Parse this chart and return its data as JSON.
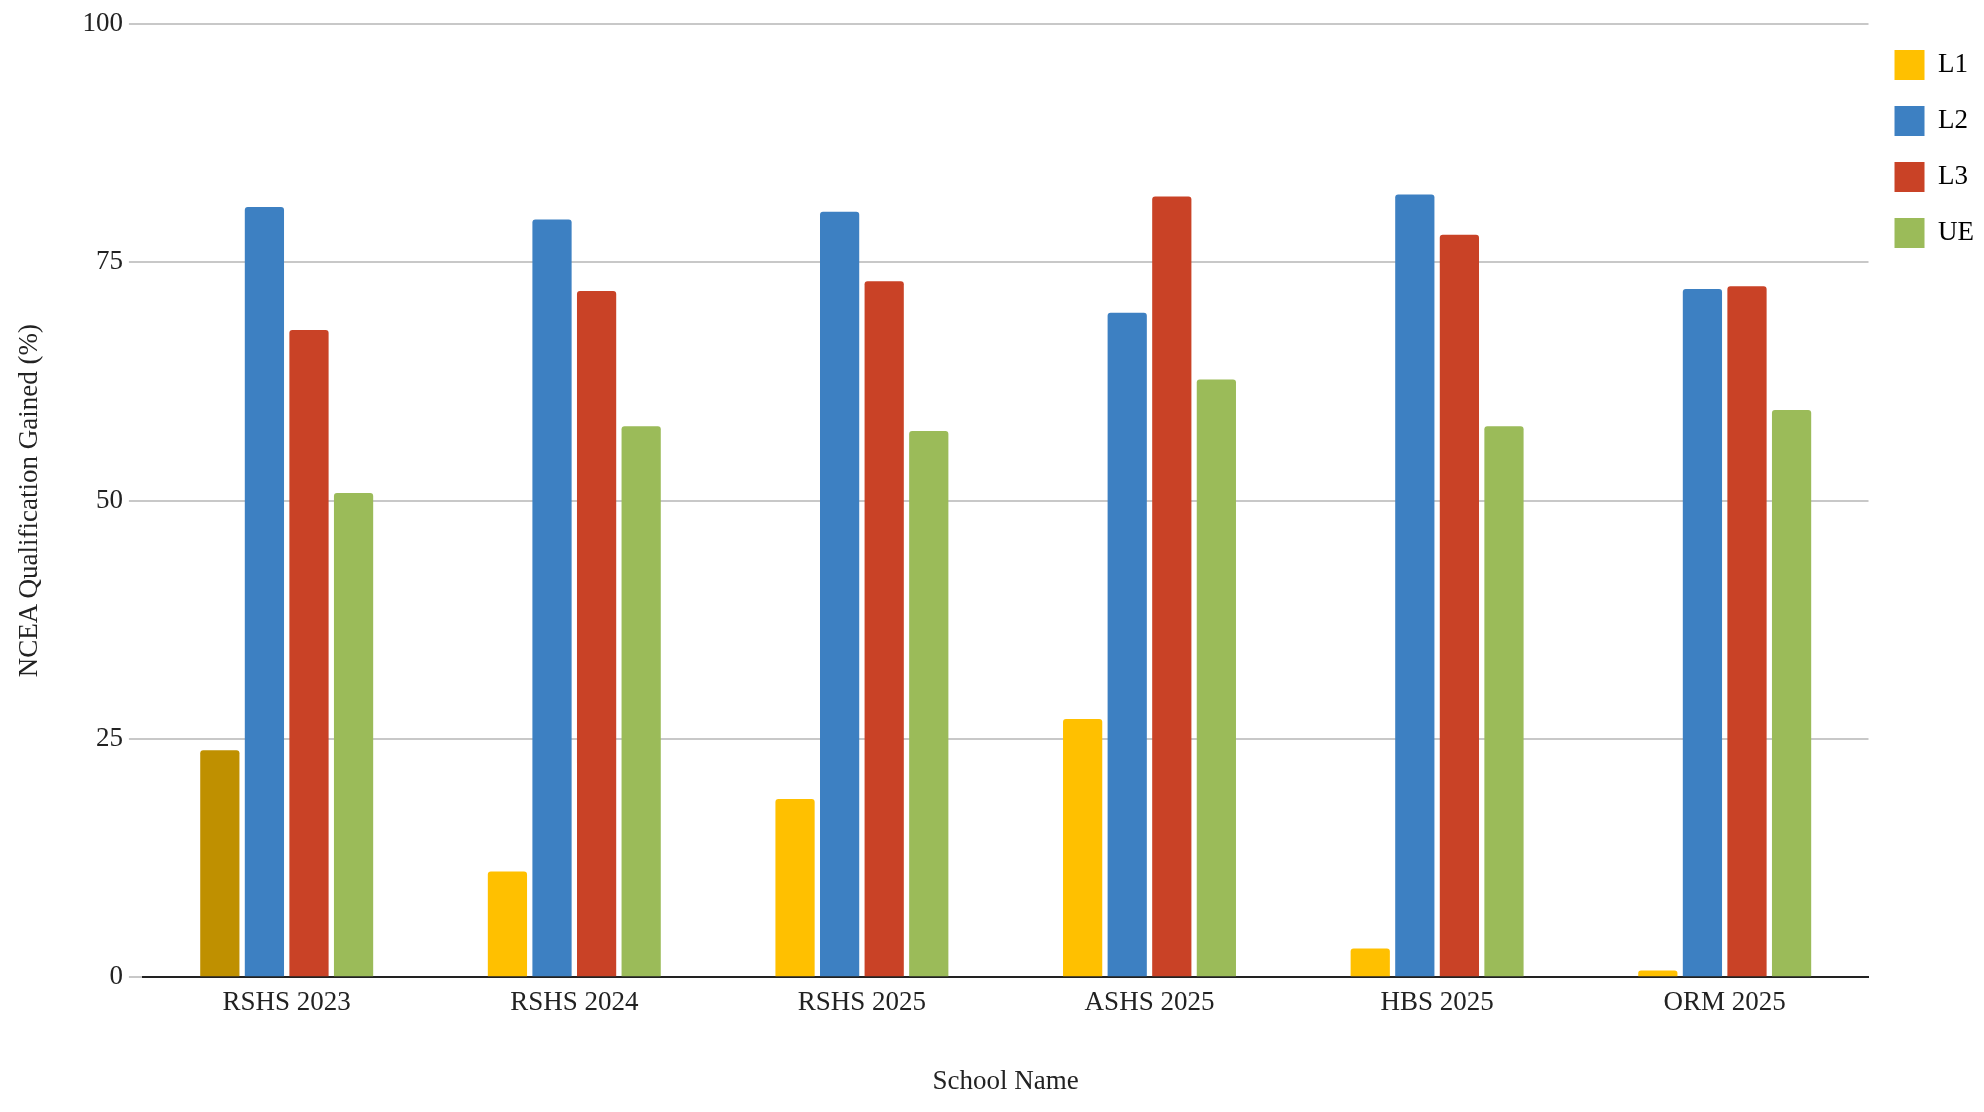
{
  "chart_data": {
    "type": "bar",
    "xlabel": "School Name",
    "ylabel": "NCEA Qualification Gained (%)",
    "categories": [
      "RSHS 2023",
      "RSHS 2024",
      "RSHS 2025",
      "ASHS 2025",
      "HBS 2025",
      "ORM 2025"
    ],
    "series": [
      {
        "name": "L1",
        "color": "#ffc000",
        "colors": [
          "#bf9000",
          "#ffc000",
          "#ffc000",
          "#ffc000",
          "#ffc000",
          "#ffc000"
        ],
        "values": [
          23.8,
          11.1,
          18.7,
          27.1,
          3.0,
          0.7
        ]
      },
      {
        "name": "L2",
        "color": "#3d80c2",
        "values": [
          80.8,
          79.5,
          80.3,
          69.7,
          82.1,
          72.2
        ]
      },
      {
        "name": "L3",
        "color": "#c94226",
        "values": [
          67.9,
          72.0,
          73.0,
          81.9,
          77.9,
          72.5
        ]
      },
      {
        "name": "UE",
        "color": "#9bbb59",
        "values": [
          50.8,
          57.8,
          57.3,
          62.7,
          57.8,
          59.5
        ]
      }
    ],
    "ylim": [
      0,
      100
    ],
    "yticks": [
      0,
      25,
      50,
      75,
      100
    ],
    "grid": "y",
    "legend": "top right"
  }
}
